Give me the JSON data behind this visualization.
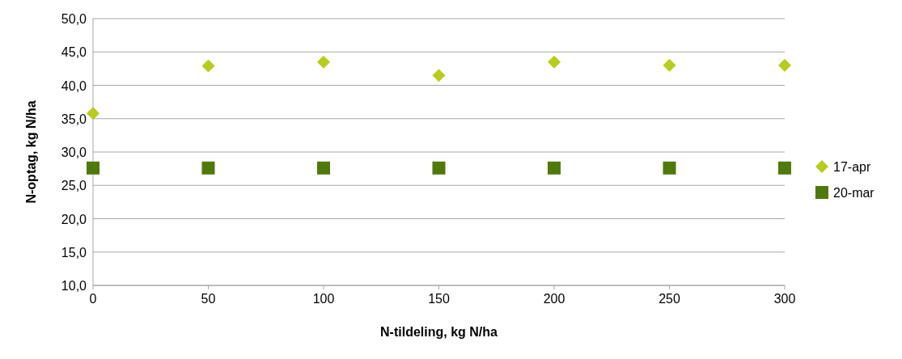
{
  "chart_data": {
    "type": "scatter",
    "xlabel": "N-tildeling,  kg N/ha",
    "ylabel": "N-optag, kg N/ha",
    "x": [
      0,
      50,
      100,
      150,
      200,
      250,
      300
    ],
    "series": [
      {
        "name": "17-apr",
        "color": "#b8cc1c",
        "marker": "diamond",
        "values": [
          35.8,
          42.9,
          43.5,
          41.5,
          43.5,
          43.0,
          43.0
        ]
      },
      {
        "name": "20-mar",
        "color": "#4f7a0b",
        "marker": "square",
        "values": [
          27.6,
          27.6,
          27.6,
          27.6,
          27.6,
          27.6,
          27.6
        ]
      }
    ],
    "xlim": [
      0,
      300
    ],
    "xticks": [
      0,
      50,
      100,
      150,
      200,
      250,
      300
    ],
    "ylim": [
      10,
      50
    ],
    "yticks": [
      {
        "value": 10,
        "label": "10,0"
      },
      {
        "value": 15,
        "label": "15,0"
      },
      {
        "value": 20,
        "label": "20,0"
      },
      {
        "value": 25,
        "label": "25,0"
      },
      {
        "value": 30,
        "label": "30,0"
      },
      {
        "value": 35,
        "label": "35,0"
      },
      {
        "value": 40,
        "label": "40,0"
      },
      {
        "value": 45,
        "label": "45,0"
      },
      {
        "value": 50,
        "label": "50,0"
      }
    ],
    "grid": "y",
    "legend": "right"
  }
}
